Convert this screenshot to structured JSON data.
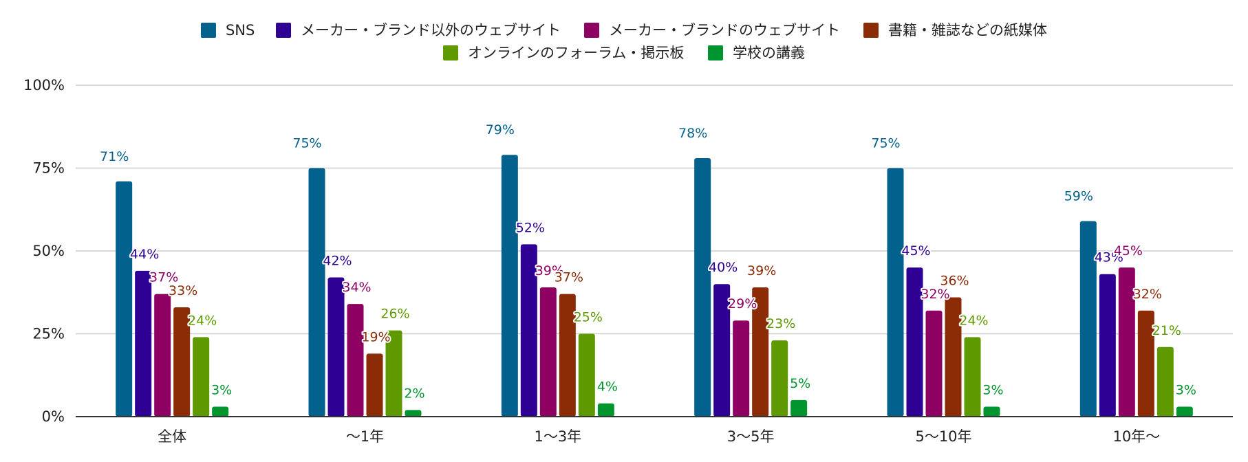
{
  "chart_data": {
    "type": "bar",
    "title": "",
    "xlabel": "",
    "ylabel": "",
    "ylim": [
      0,
      100
    ],
    "yticks": [
      0,
      25,
      50,
      75,
      100
    ],
    "ytick_labels": [
      "0%",
      "25%",
      "50%",
      "75%",
      "100%"
    ],
    "grid": true,
    "legend_position": "top",
    "categories": [
      "全体",
      "〜1年",
      "1〜3年",
      "3〜5年",
      "5〜10年",
      "10年〜"
    ],
    "series": [
      {
        "name": "SNS",
        "color": "#03618d",
        "values": [
          71,
          75,
          79,
          78,
          75,
          59
        ],
        "labels": [
          "71%",
          "75%",
          "79%",
          "78%",
          "75%",
          "59%"
        ]
      },
      {
        "name": "メーカー・ブランド以外のウェブサイト",
        "color": "#2e0093",
        "values": [
          44,
          42,
          52,
          40,
          45,
          43
        ],
        "labels": [
          "44%",
          "42%",
          "52%",
          "40%",
          "45%",
          "43%"
        ]
      },
      {
        "name": "メーカー・ブランドのウェブサイト",
        "color": "#8e0062",
        "values": [
          37,
          34,
          39,
          29,
          32,
          45
        ],
        "labels": [
          "37%",
          "34%",
          "39%",
          "29%",
          "32%",
          "45%"
        ]
      },
      {
        "name": "書籍・雑誌などの紙媒体",
        "color": "#8b2c07",
        "values": [
          33,
          19,
          37,
          39,
          36,
          32
        ],
        "labels": [
          "33%",
          "19%",
          "37%",
          "39%",
          "36%",
          "32%"
        ]
      },
      {
        "name": "オンラインのフォーラム・掲示板",
        "color": "#5e9900",
        "values": [
          24,
          26,
          25,
          23,
          24,
          21
        ],
        "labels": [
          "24%",
          "26%",
          "25%",
          "23%",
          "24%",
          "21%"
        ]
      },
      {
        "name": "学校の講義",
        "color": "#00952e",
        "values": [
          3,
          2,
          4,
          5,
          3,
          3
        ],
        "labels": [
          "3%",
          "2%",
          "4%",
          "5%",
          "3%",
          "3%"
        ]
      }
    ]
  }
}
